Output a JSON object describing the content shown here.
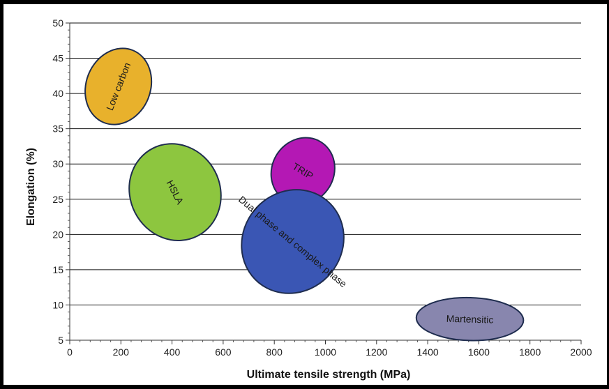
{
  "chart_data": {
    "type": "scatter",
    "xlabel": "Ultimate tensile strength (MPa)",
    "ylabel": "Elongation (%)",
    "xlim": [
      0,
      2000
    ],
    "ylim": [
      5,
      50
    ],
    "xticks": [
      0,
      200,
      400,
      600,
      800,
      1000,
      1200,
      1400,
      1600,
      1800,
      2000
    ],
    "yticks": [
      5,
      10,
      15,
      20,
      25,
      30,
      35,
      40,
      45,
      50
    ],
    "grid": "horizontal",
    "regions": [
      {
        "name": "Low carbon",
        "cx": 190,
        "cy": 41,
        "semi_x": 108,
        "semi_y": 6,
        "angle": -59,
        "color": "#E8B12C"
      },
      {
        "name": "HSLA",
        "cx": 412,
        "cy": 26,
        "semi_x": 139,
        "semi_y": 8,
        "angle": 51,
        "color": "#8DC63F"
      },
      {
        "name": "TRIP",
        "cx": 912,
        "cy": 29,
        "semi_x": 116,
        "semi_y": 5,
        "angle": 27,
        "color": "#B418B4"
      },
      {
        "name": "Dual phase and complex phase",
        "cx": 872,
        "cy": 19,
        "semi_x": 180,
        "semi_y": 8,
        "angle": 34,
        "color": "#3A56B4"
      },
      {
        "name": "Martensitic",
        "cx": 1565,
        "cy": 8,
        "semi_x": 210,
        "semi_y": 3,
        "angle": 4,
        "color": "#8886AE"
      }
    ]
  }
}
